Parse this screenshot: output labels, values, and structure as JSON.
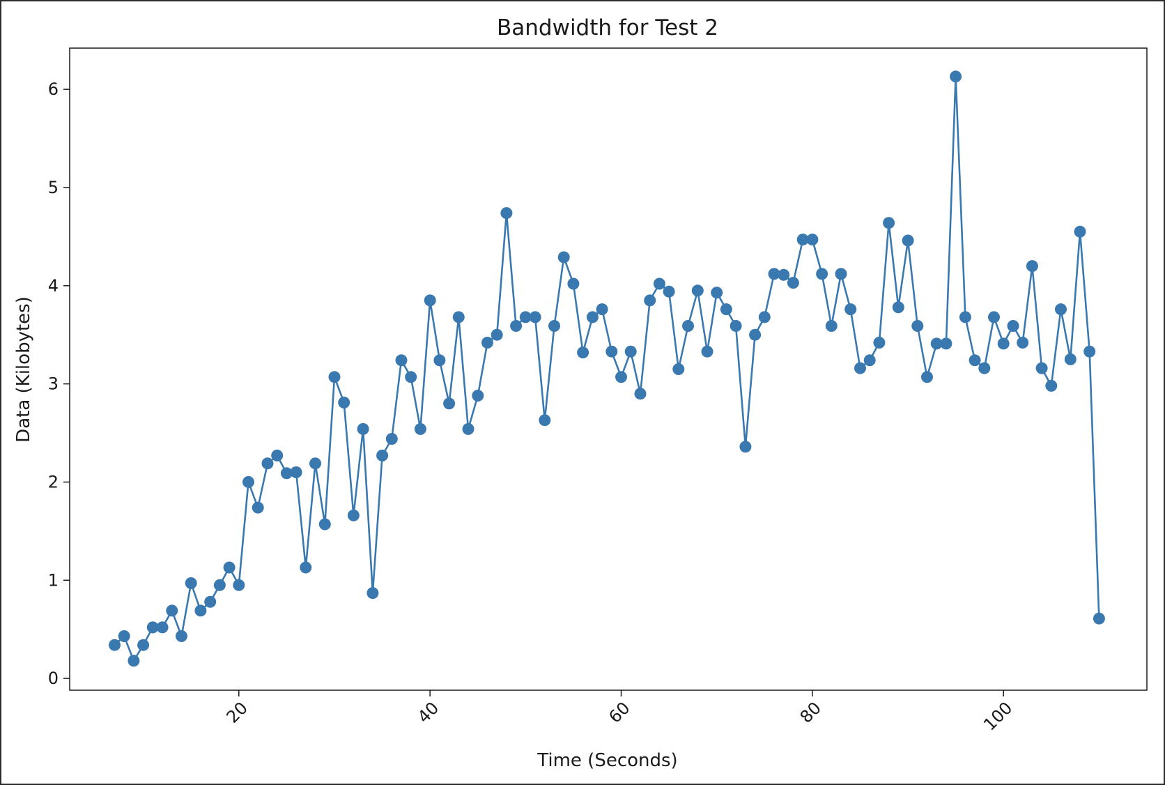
{
  "chart_data": {
    "type": "line",
    "title": "Bandwidth for Test 2",
    "xlabel": "Time (Seconds)",
    "ylabel": "Data (Kilobytes)",
    "xlim": [
      2.3,
      115
    ],
    "ylim": [
      -0.12,
      6.42
    ],
    "xticks": [
      20,
      40,
      60,
      80,
      100
    ],
    "yticks": [
      0,
      1,
      2,
      3,
      4,
      5,
      6
    ],
    "xtick_labels": [
      "20",
      "40",
      "60",
      "80",
      "100"
    ],
    "ytick_labels": [
      "0",
      "1",
      "2",
      "3",
      "4",
      "5",
      "6"
    ],
    "grid": false,
    "legend": "none",
    "colors": {
      "series": "#3a78b0",
      "axes": "#1a1a1a"
    },
    "series": [
      {
        "x": [
          7,
          8,
          9,
          10,
          11,
          12,
          13,
          14,
          15,
          16,
          17,
          18,
          19,
          20,
          21,
          22,
          23,
          24,
          25,
          26,
          27,
          28,
          29,
          30,
          31,
          32,
          33,
          34,
          35,
          36,
          37,
          38,
          39,
          40,
          41,
          42,
          43,
          44,
          45,
          46,
          47,
          48,
          49,
          50,
          51,
          52,
          53,
          54,
          55,
          56,
          57,
          58,
          59,
          60,
          61,
          62,
          63,
          64,
          65,
          66,
          67,
          68,
          69,
          70,
          71,
          72,
          73,
          74,
          75,
          76,
          77,
          78,
          79,
          80,
          81,
          82,
          83,
          84,
          85,
          86,
          87,
          88,
          89,
          90,
          91,
          92,
          93,
          94,
          95,
          96,
          97,
          98,
          99,
          100,
          101,
          102,
          103,
          104,
          105,
          106,
          107,
          108,
          109,
          110
        ],
        "values": [
          0.34,
          0.43,
          0.18,
          0.34,
          0.52,
          0.52,
          0.69,
          0.43,
          0.97,
          0.69,
          0.78,
          0.95,
          1.13,
          0.95,
          2.0,
          1.74,
          2.19,
          2.27,
          2.09,
          2.1,
          1.13,
          2.19,
          1.57,
          3.07,
          2.81,
          1.66,
          2.54,
          0.87,
          2.27,
          2.44,
          3.24,
          3.07,
          2.54,
          3.85,
          3.24,
          2.8,
          3.68,
          2.54,
          2.88,
          3.42,
          3.5,
          4.74,
          3.59,
          3.68,
          3.68,
          2.63,
          3.59,
          4.29,
          4.02,
          3.32,
          3.68,
          3.76,
          3.33,
          3.07,
          3.33,
          2.9,
          3.85,
          4.02,
          3.94,
          3.15,
          3.59,
          3.95,
          3.33,
          3.93,
          3.76,
          3.59,
          2.36,
          3.5,
          3.68,
          4.12,
          4.11,
          4.03,
          4.47,
          4.47,
          4.12,
          3.59,
          4.12,
          3.76,
          3.16,
          3.24,
          3.42,
          4.64,
          3.78,
          4.46,
          3.59,
          3.07,
          3.41,
          3.41,
          6.13,
          3.68,
          3.24,
          3.16,
          3.68,
          3.41,
          3.59,
          3.42,
          4.2,
          3.16,
          2.98,
          3.76,
          3.25,
          4.55,
          3.33,
          0.61
        ]
      }
    ]
  }
}
